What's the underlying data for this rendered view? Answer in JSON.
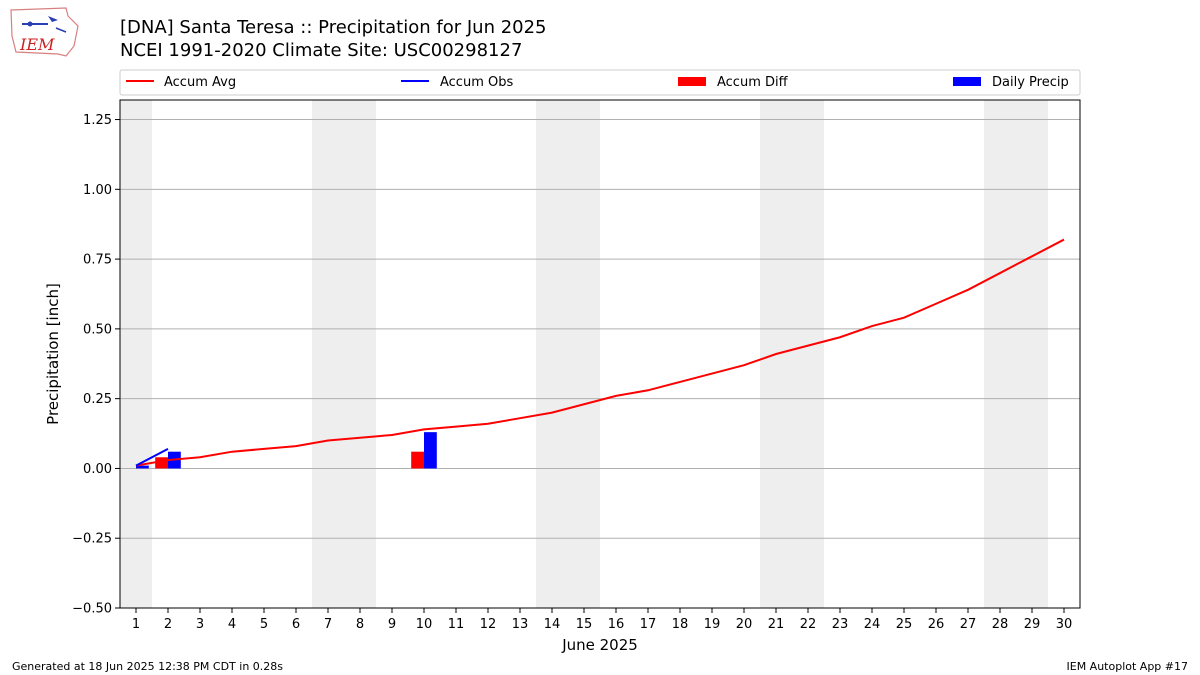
{
  "header": {
    "title_line1": "[DNA] Santa Teresa :: Precipitation for Jun 2025",
    "title_line2": "NCEI 1991-2020 Climate Site: USC00298127",
    "logo_text": "IEM"
  },
  "footer": {
    "generated": "Generated at 18 Jun 2025 12:38 PM CDT in 0.28s",
    "app": "IEM Autoplot App #17"
  },
  "colors": {
    "avg": "#ff0000",
    "obs": "#0000ff",
    "diff": "#ff0000",
    "daily": "#0000ff",
    "weekend_shade": "#eeeeee",
    "grid": "#b0b0b0"
  },
  "chart_data": {
    "type": "bar",
    "xlabel": "June 2025",
    "ylabel": "Precipitation [inch]",
    "ylim": [
      -0.5,
      1.32
    ],
    "yticks": [
      -0.5,
      -0.25,
      0.0,
      0.25,
      0.5,
      0.75,
      1.0,
      1.25
    ],
    "ytick_labels": [
      "−0.50",
      "−0.25",
      "0.00",
      "0.25",
      "0.50",
      "0.75",
      "1.00",
      "1.25"
    ],
    "xlim": [
      0.5,
      30.5
    ],
    "days": [
      1,
      2,
      3,
      4,
      5,
      6,
      7,
      8,
      9,
      10,
      11,
      12,
      13,
      14,
      15,
      16,
      17,
      18,
      19,
      20,
      21,
      22,
      23,
      24,
      25,
      26,
      27,
      28,
      29,
      30
    ],
    "weekend_days": [
      1,
      7,
      8,
      14,
      15,
      21,
      22,
      28,
      29
    ],
    "grid": true,
    "legend": {
      "placement": "top",
      "entries": [
        "Accum Avg",
        "Accum Obs",
        "Accum Diff",
        "Daily Precip"
      ]
    },
    "series": [
      {
        "name": "Accum Avg",
        "type": "line",
        "x": [
          1,
          2,
          3,
          4,
          5,
          6,
          7,
          8,
          9,
          10,
          11,
          12,
          13,
          14,
          15,
          16,
          17,
          18,
          19,
          20,
          21,
          22,
          23,
          24,
          25,
          26,
          27,
          28,
          29,
          30
        ],
        "values": [
          0.01,
          0.03,
          0.04,
          0.06,
          0.07,
          0.08,
          0.1,
          0.11,
          0.12,
          0.14,
          0.15,
          0.16,
          0.18,
          0.2,
          0.23,
          0.26,
          0.28,
          0.31,
          0.34,
          0.37,
          0.41,
          0.44,
          0.47,
          0.51,
          0.54,
          0.59,
          0.64,
          0.7,
          0.76,
          0.82
        ]
      },
      {
        "name": "Accum Obs",
        "type": "line",
        "x": [
          1,
          2
        ],
        "values": [
          0.01,
          0.07
        ]
      },
      {
        "name": "Accum Diff",
        "type": "bar",
        "x": [
          1,
          2,
          10
        ],
        "values": [
          0.0,
          0.04,
          0.06
        ]
      },
      {
        "name": "Daily Precip",
        "type": "bar",
        "x": [
          1,
          2,
          10
        ],
        "values": [
          0.01,
          0.06,
          0.13
        ]
      }
    ]
  }
}
